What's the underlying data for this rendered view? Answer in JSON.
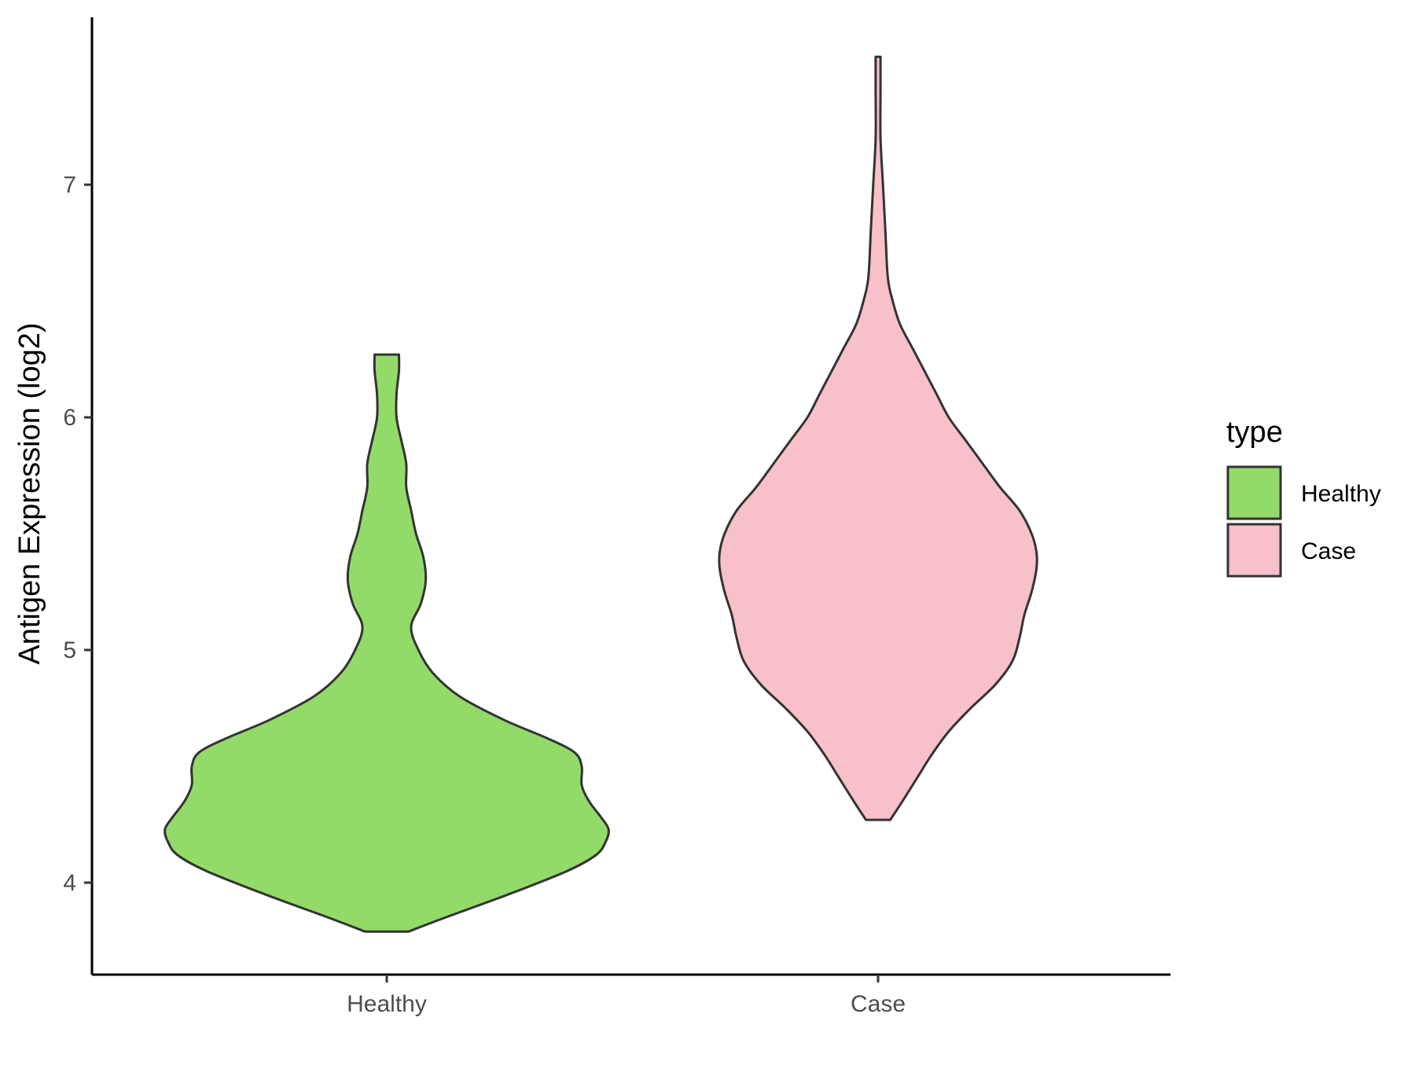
{
  "chart_data": {
    "type": "violin",
    "title": "",
    "xlabel": "",
    "ylabel": "Antigen Expression (log2)",
    "categories": [
      "Healthy",
      "Case"
    ],
    "y_ticks": [
      "4",
      "5",
      "6",
      "7"
    ],
    "y_tick_values": [
      4,
      5,
      6,
      7
    ],
    "ylim": [
      3.6,
      7.7
    ],
    "grid": false,
    "legend": {
      "title": "type",
      "position": "right",
      "entries": [
        {
          "label": "Healthy",
          "color": "#93db69"
        },
        {
          "label": "Case",
          "color": "#f7c0cb"
        }
      ]
    },
    "series": [
      {
        "category": "Healthy",
        "color": "#93db69",
        "y_min": 3.79,
        "y_max": 6.27,
        "density_profile": [
          [
            3.79,
            0.09
          ],
          [
            3.85,
            0.24
          ],
          [
            3.95,
            0.5
          ],
          [
            4.05,
            0.74
          ],
          [
            4.12,
            0.86
          ],
          [
            4.18,
            0.9
          ],
          [
            4.23,
            0.91
          ],
          [
            4.28,
            0.88
          ],
          [
            4.35,
            0.83
          ],
          [
            4.42,
            0.8
          ],
          [
            4.5,
            0.8
          ],
          [
            4.56,
            0.77
          ],
          [
            4.62,
            0.66
          ],
          [
            4.7,
            0.48
          ],
          [
            4.8,
            0.3
          ],
          [
            4.9,
            0.19
          ],
          [
            5.0,
            0.13
          ],
          [
            5.1,
            0.1
          ],
          [
            5.2,
            0.14
          ],
          [
            5.3,
            0.16
          ],
          [
            5.4,
            0.15
          ],
          [
            5.5,
            0.12
          ],
          [
            5.6,
            0.1
          ],
          [
            5.7,
            0.08
          ],
          [
            5.8,
            0.08
          ],
          [
            5.9,
            0.06
          ],
          [
            6.0,
            0.04
          ],
          [
            6.1,
            0.04
          ],
          [
            6.2,
            0.05
          ],
          [
            6.27,
            0.05
          ]
        ]
      },
      {
        "category": "Case",
        "color": "#f7c0cb",
        "y_min": 4.27,
        "y_max": 7.55,
        "density_profile": [
          [
            4.27,
            0.05
          ],
          [
            4.35,
            0.1
          ],
          [
            4.45,
            0.16
          ],
          [
            4.55,
            0.22
          ],
          [
            4.65,
            0.29
          ],
          [
            4.75,
            0.38
          ],
          [
            4.85,
            0.48
          ],
          [
            4.95,
            0.55
          ],
          [
            5.05,
            0.58
          ],
          [
            5.15,
            0.6
          ],
          [
            5.25,
            0.63
          ],
          [
            5.35,
            0.65
          ],
          [
            5.42,
            0.65
          ],
          [
            5.5,
            0.63
          ],
          [
            5.6,
            0.58
          ],
          [
            5.7,
            0.5
          ],
          [
            5.8,
            0.43
          ],
          [
            5.9,
            0.36
          ],
          [
            6.0,
            0.29
          ],
          [
            6.1,
            0.24
          ],
          [
            6.2,
            0.19
          ],
          [
            6.3,
            0.14
          ],
          [
            6.4,
            0.09
          ],
          [
            6.5,
            0.06
          ],
          [
            6.6,
            0.04
          ],
          [
            6.8,
            0.03
          ],
          [
            7.0,
            0.02
          ],
          [
            7.2,
            0.01
          ],
          [
            7.4,
            0.01
          ],
          [
            7.55,
            0.01
          ]
        ]
      }
    ]
  }
}
